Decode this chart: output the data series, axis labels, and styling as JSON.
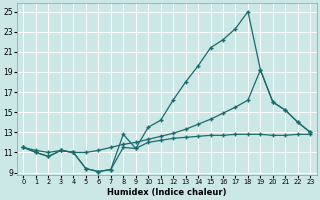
{
  "xlabel": "Humidex (Indice chaleur)",
  "bg_color": "#cce8e6",
  "grid_color": "#b0d4d0",
  "line_color": "#1a6b6b",
  "xlim": [
    -0.5,
    23.5
  ],
  "ylim": [
    8.8,
    25.8
  ],
  "xticks": [
    0,
    1,
    2,
    3,
    4,
    5,
    6,
    7,
    8,
    9,
    10,
    11,
    12,
    13,
    14,
    15,
    16,
    17,
    18,
    19,
    20,
    21,
    22,
    23
  ],
  "yticks": [
    9,
    11,
    13,
    15,
    17,
    19,
    21,
    23,
    25
  ],
  "line_peak_x": [
    0,
    1,
    2,
    3,
    4,
    5,
    6,
    7,
    8,
    9,
    10,
    11,
    12,
    13,
    14,
    15,
    16,
    17,
    18,
    19,
    20,
    21,
    22,
    23
  ],
  "line_peak_y": [
    11.5,
    11.0,
    10.6,
    11.2,
    11.0,
    9.4,
    9.1,
    9.3,
    12.8,
    11.4,
    13.5,
    14.2,
    16.2,
    18.0,
    19.6,
    21.4,
    22.2,
    23.3,
    25.0,
    19.2,
    16.0,
    15.2,
    14.0,
    13.0
  ],
  "line_diag_x": [
    0,
    1,
    2,
    3,
    4,
    5,
    6,
    7,
    8,
    9,
    10,
    11,
    12,
    13,
    14,
    15,
    16,
    17,
    18,
    19,
    20,
    21,
    22,
    23
  ],
  "line_diag_y": [
    11.5,
    11.2,
    11.0,
    11.2,
    11.0,
    11.0,
    11.2,
    11.5,
    11.8,
    12.0,
    12.3,
    12.6,
    12.9,
    13.3,
    13.8,
    14.3,
    14.9,
    15.5,
    16.2,
    19.2,
    16.0,
    15.2,
    14.0,
    13.0
  ],
  "line_flat_x": [
    0,
    1,
    2,
    3,
    4,
    5,
    6,
    7,
    8,
    9,
    10,
    11,
    12,
    13,
    14,
    15,
    16,
    17,
    18,
    19,
    20,
    21,
    22,
    23
  ],
  "line_flat_y": [
    11.5,
    11.0,
    10.6,
    11.2,
    11.0,
    9.4,
    9.1,
    9.3,
    11.5,
    11.4,
    12.0,
    12.2,
    12.4,
    12.5,
    12.6,
    12.7,
    12.7,
    12.8,
    12.8,
    12.8,
    12.7,
    12.7,
    12.8,
    12.8
  ]
}
